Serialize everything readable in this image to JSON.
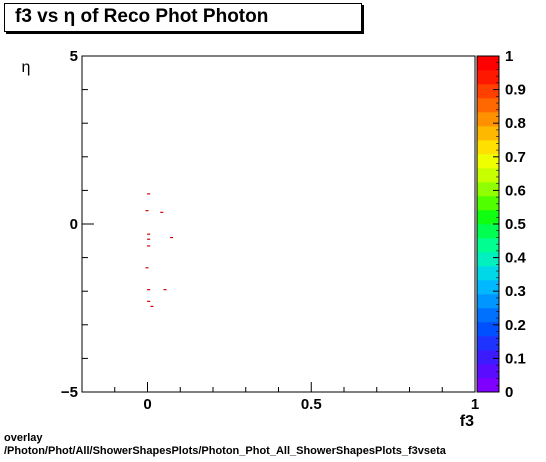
{
  "chart_data": {
    "type": "scatter",
    "title": "f3 vs  η of Reco Phot Photon",
    "xlabel": "f3",
    "ylabel": "η",
    "xlim": [
      -0.2,
      1.0
    ],
    "ylim": [
      -5,
      5
    ],
    "x_ticks": [
      {
        "value": 0,
        "label": "0"
      },
      {
        "value": 0.5,
        "label": "0.5"
      },
      {
        "value": 1,
        "label": "1"
      }
    ],
    "y_ticks": [
      {
        "value": 5,
        "label": "5"
      },
      {
        "value": 0,
        "label": "0"
      },
      {
        "value": -5,
        "label": "−5"
      }
    ],
    "colorbar": {
      "range": [
        0,
        1
      ],
      "tick_labels": [
        "0",
        "0.1",
        "0.2",
        "0.3",
        "0.4",
        "0.5",
        "0.6",
        "0.7",
        "0.8",
        "0.9",
        "1"
      ],
      "colors": [
        "#7f00ff",
        "#5a0cff",
        "#3c1bff",
        "#1f33ff",
        "#0050ff",
        "#0070ff",
        "#0096ff",
        "#00b8ff",
        "#00d8e8",
        "#00f0c0",
        "#00ff90",
        "#00ff50",
        "#10ff10",
        "#50ff00",
        "#90ff00",
        "#c8ff00",
        "#f0ff00",
        "#ffe000",
        "#ffb800",
        "#ff9000",
        "#ff6800",
        "#ff4000",
        "#ff1800",
        "#ff0000"
      ]
    },
    "points": [
      {
        "x": 0.005,
        "y": 0.9
      },
      {
        "x": 0.0,
        "y": 0.4
      },
      {
        "x": 0.045,
        "y": 0.35
      },
      {
        "x": 0.005,
        "y": -0.3
      },
      {
        "x": 0.005,
        "y": -0.45
      },
      {
        "x": 0.075,
        "y": -0.4
      },
      {
        "x": 0.005,
        "y": -0.65
      },
      {
        "x": 0.0,
        "y": -1.3
      },
      {
        "x": 0.005,
        "y": -1.95
      },
      {
        "x": 0.055,
        "y": -1.95
      },
      {
        "x": 0.005,
        "y": -2.3
      },
      {
        "x": 0.015,
        "y": -2.45
      }
    ],
    "marker_color": "#d40000"
  },
  "footer": {
    "line1": "overlay",
    "line2": "/Photon/Phot/All/ShowerShapesPlots/Photon_Phot_All_ShowerShapesPlots_f3vseta"
  }
}
